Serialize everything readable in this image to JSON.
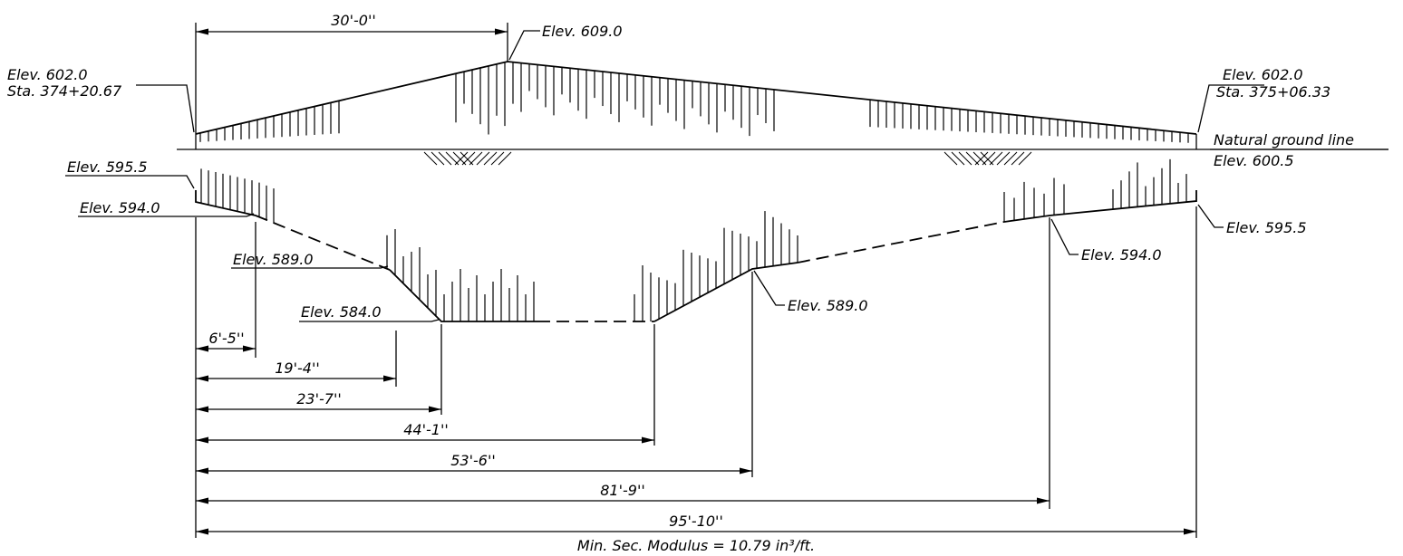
{
  "labels": {
    "top_dim": "30'-0''",
    "peak_elev": "Elev. 609.0",
    "left_elev": "Elev. 602.0",
    "left_sta": "Sta. 374+20.67",
    "right_elev": "Elev. 602.0",
    "right_sta": "Sta. 375+06.33",
    "natural_ground": "Natural ground line",
    "natural_ground_elev": "Elev. 600.5",
    "l_595_5": "Elev. 595.5",
    "l_594_0": "Elev. 594.0",
    "l_589_0": "Elev. 589.0",
    "l_584_0": "Elev. 584.0",
    "r_595_5": "Elev. 595.5",
    "r_594_0": "Elev. 594.0",
    "r_589_0": "Elev. 589.0"
  },
  "dimensions": [
    {
      "id": "d1",
      "text": "6'-5''"
    },
    {
      "id": "d2",
      "text": "19'-4''"
    },
    {
      "id": "d3",
      "text": "23'-7''"
    },
    {
      "id": "d4",
      "text": "44'-1''"
    },
    {
      "id": "d5",
      "text": "53'-6''"
    },
    {
      "id": "d6",
      "text": "81'-9''"
    },
    {
      "id": "d7",
      "text": "95'-10''"
    }
  ],
  "footer": "Min. Sec. Modulus = 10.79 in³/ft."
}
